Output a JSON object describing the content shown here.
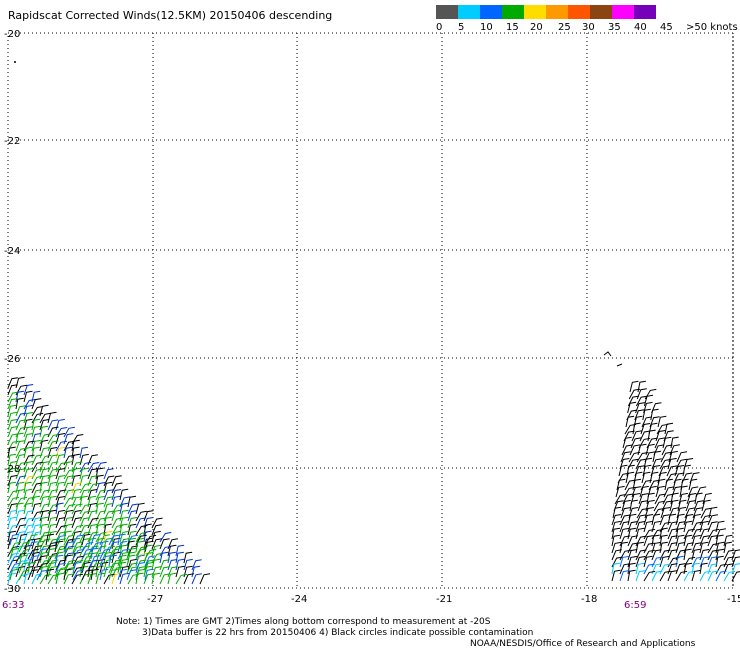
{
  "title": "Rapidscat Corrected Winds(12.5KM) 20150406 descending",
  "legend": {
    "colors": [
      "#555555",
      "#777777",
      "#00aaff",
      "#00ccff",
      "#0033cc",
      "#0000ff",
      "#00aa00",
      "#00cc00",
      "#ffcc00",
      "#ffff00",
      "#ff9900",
      "#ff6600",
      "#ff3300",
      "#ff0000",
      "#8b4513",
      "#a0522d",
      "#ff00ff",
      "#cc00cc",
      "#8800cc",
      "#6600aa"
    ],
    "labels": [
      "0",
      "5",
      "10",
      "15",
      "20",
      "25",
      "30",
      "35",
      "40",
      "45",
      ">50 knots"
    ]
  },
  "axes": {
    "lat_labels": [
      "-20",
      "-22",
      "-24",
      "-26",
      "-28",
      "-30"
    ],
    "lon_labels": [
      "-27",
      "-24",
      "-21",
      "-18",
      "-15"
    ]
  },
  "times": {
    "left": "6:33",
    "right": "6:59"
  },
  "notes": {
    "line1": "Note: 1) Times are GMT 2)Times along bottom correspond to measurement at -20S",
    "line2": "3)Data buffer is 22 hrs from 20150406 4) Black circles indicate possible contamination"
  },
  "credit": "NOAA/NESDIS/Office of Research and Applications"
}
